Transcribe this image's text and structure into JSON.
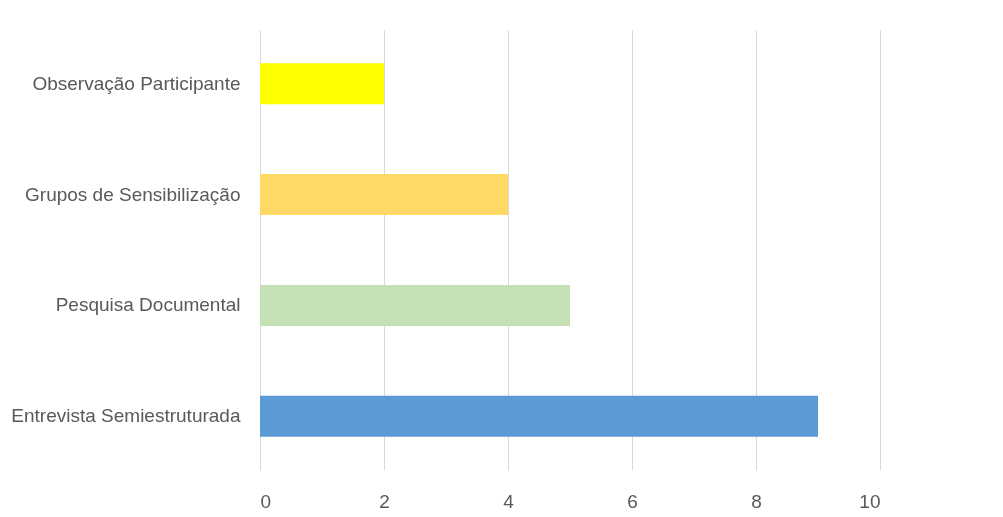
{
  "chart_data": {
    "type": "bar",
    "orientation": "horizontal",
    "categories": [
      "Observação Participante",
      "Grupos de Sensibilização",
      "Pesquisa Documental",
      "Entrevista Semiestruturada"
    ],
    "values": [
      2,
      4,
      5,
      9
    ],
    "colors": [
      "#ffff00",
      "#ffd966",
      "#c5e0b4",
      "#5b9bd5"
    ],
    "xlim": [
      0,
      10
    ],
    "xticks": [
      0,
      2,
      4,
      6,
      8,
      10
    ],
    "grid": "x"
  }
}
